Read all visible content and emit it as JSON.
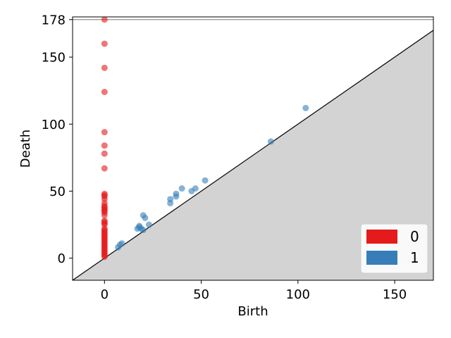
{
  "chart_data": {
    "type": "scatter",
    "title": "",
    "xlabel": "Birth",
    "ylabel": "Death",
    "xlim": [
      -16.5,
      170
    ],
    "ylim": [
      -16.5,
      180
    ],
    "xticks": [
      0,
      50,
      100,
      150
    ],
    "yticks": [
      0,
      50,
      100,
      150,
      178
    ],
    "infinity_line": 178,
    "diagonal": true,
    "grid": false,
    "legend_placement": "bottom-right",
    "colors": {
      "dim0": "#e41a1c",
      "dim1": "#377eb8",
      "shade": "#d3d3d3",
      "infinity": "#808080"
    },
    "series": [
      {
        "name": "0",
        "color": "#e41a1c",
        "x": [
          0,
          0,
          0,
          0,
          0,
          0,
          0,
          0,
          0,
          0,
          0,
          0,
          0,
          0,
          0,
          0,
          0,
          0,
          0,
          0,
          0,
          0,
          0,
          0,
          0,
          0,
          0,
          0,
          0,
          0,
          0,
          0,
          0,
          0,
          0,
          0,
          0,
          0,
          0,
          0,
          0,
          0,
          0,
          0,
          0,
          0
        ],
        "y": [
          178,
          160,
          142,
          124,
          94,
          84,
          78,
          67,
          48,
          47,
          46,
          44,
          41,
          39,
          38,
          37,
          36,
          35,
          34,
          32,
          28,
          27,
          26,
          25,
          22,
          21,
          20,
          19,
          18,
          17,
          16,
          15,
          14,
          13,
          12,
          11,
          10,
          9,
          8,
          7,
          6,
          5,
          4,
          3,
          2,
          1
        ]
      },
      {
        "name": "1",
        "color": "#377eb8",
        "x": [
          104,
          86,
          52,
          47,
          45,
          40,
          37,
          37,
          34,
          34,
          23,
          21,
          20,
          20,
          19,
          18,
          17,
          18,
          8,
          7,
          9
        ],
        "y": [
          112,
          87,
          58,
          52,
          50,
          52,
          48,
          46,
          44,
          41,
          25,
          30,
          32,
          21,
          22,
          24,
          22,
          23,
          10,
          8,
          11
        ]
      }
    ]
  }
}
